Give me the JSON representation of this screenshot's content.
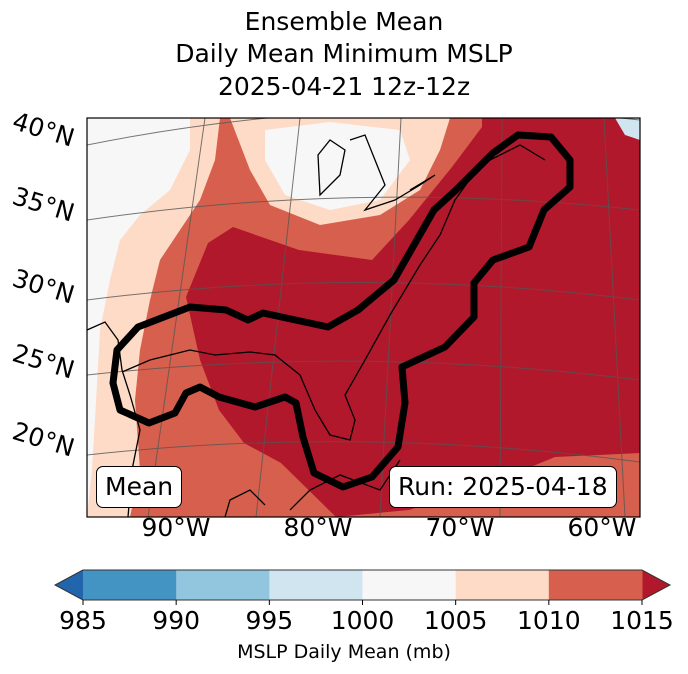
{
  "title": [
    "Ensemble Mean",
    "Daily Mean Minimum MSLP",
    "2025-04-21 12z-12z"
  ],
  "lat_labels": [
    "40°N",
    "35°N",
    "30°N",
    "25°N",
    "20°N"
  ],
  "lon_labels": [
    "90°W",
    "80°W",
    "70°W",
    "60°W"
  ],
  "mean_label": "Mean",
  "run_label": "Run: 2025-04-18",
  "colorbar": {
    "label": "MSLP Daily Mean (mb)",
    "ticks": [
      "985",
      "990",
      "995",
      "1000",
      "1005",
      "1010",
      "1015"
    ],
    "colors": [
      "#4393c3",
      "#92c5de",
      "#d1e5f0",
      "#f7f7f7",
      "#fddbc7",
      "#d6604d"
    ],
    "under_color": "#2166ac",
    "over_color": "#b2182b"
  },
  "chart_data": {
    "type": "heatmap",
    "title": "Ensemble Mean Daily Mean Minimum MSLP 2025-04-21 12z-12z",
    "field": "MSLP Daily Mean (mb)",
    "levels": [
      985,
      990,
      995,
      1000,
      1005,
      1010,
      1015
    ],
    "extend": "both",
    "lat_range": [
      15,
      42
    ],
    "lon_range": [
      -97,
      -58
    ],
    "contour": "thick black outline enclosing >1015 mb ensemble mean region from Gulf of Mexico to Nova Scotia"
  }
}
